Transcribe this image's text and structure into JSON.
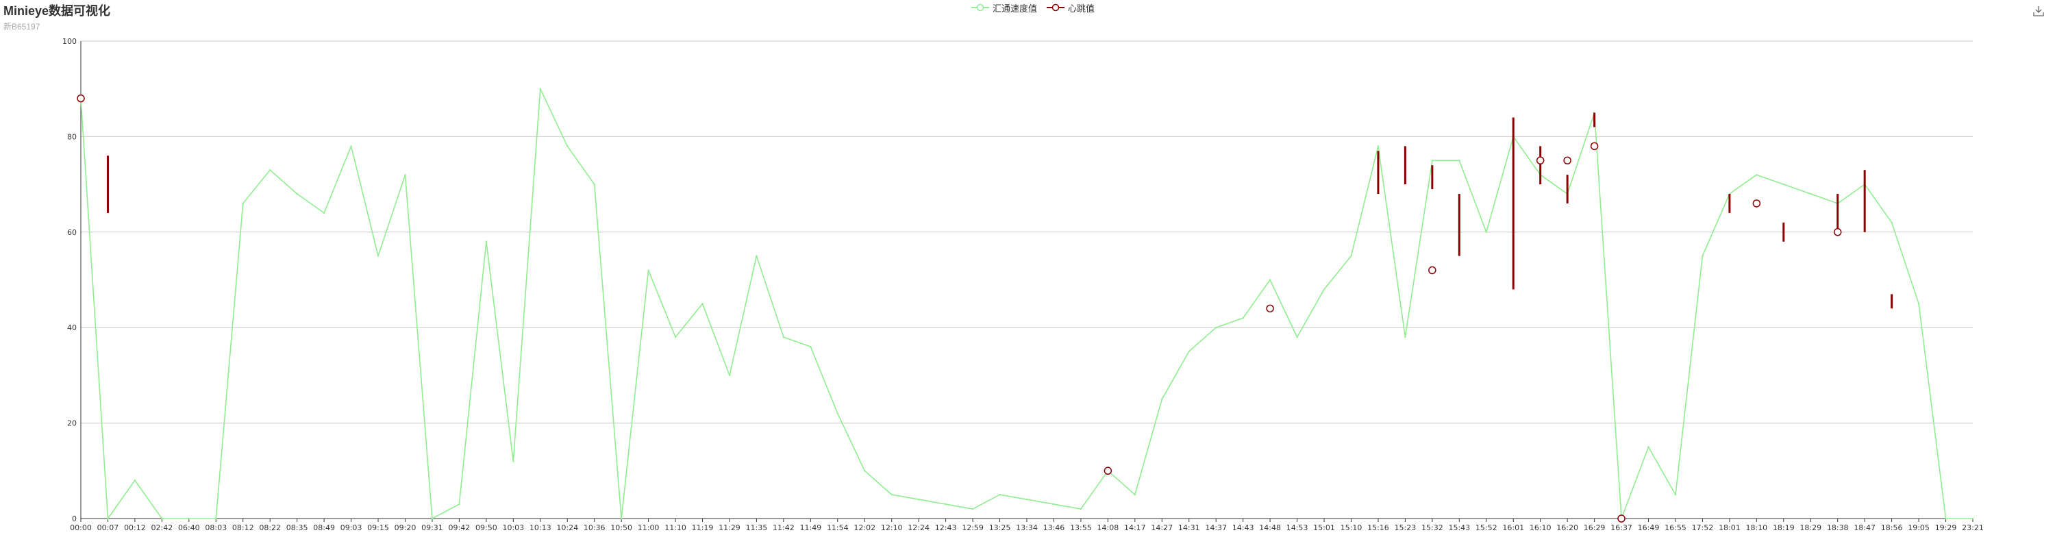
{
  "header": {
    "title": "Minieye数据可视化",
    "subtitle": "新B65197"
  },
  "toolbar": {
    "download_icon": "download-icon"
  },
  "colors": {
    "speed": "#90ee90",
    "heartbeat": "#8b0000",
    "grid": "#cccccc",
    "axis": "#333333"
  },
  "legend": {
    "placement": "top-center"
  },
  "chart_data": {
    "type": "line",
    "title": "Minieye数据可视化",
    "subtitle": "新B65197",
    "xlabel": "",
    "ylabel": "",
    "ylim": [
      0,
      100
    ],
    "yticks": [
      0,
      20,
      40,
      60,
      80,
      100
    ],
    "grid": true,
    "categories": [
      "00:00",
      "00:07",
      "00:12",
      "02:42",
      "06:40",
      "08:03",
      "08:12",
      "08:22",
      "08:35",
      "08:49",
      "09:03",
      "09:15",
      "09:20",
      "09:31",
      "09:42",
      "09:50",
      "10:03",
      "10:13",
      "10:24",
      "10:36",
      "10:50",
      "11:00",
      "11:10",
      "11:19",
      "11:29",
      "11:35",
      "11:42",
      "11:49",
      "11:54",
      "12:02",
      "12:10",
      "12:24",
      "12:43",
      "12:59",
      "13:25",
      "13:34",
      "13:46",
      "13:55",
      "14:08",
      "14:17",
      "14:27",
      "14:31",
      "14:37",
      "14:43",
      "14:48",
      "14:53",
      "15:01",
      "15:10",
      "15:16",
      "15:23",
      "15:32",
      "15:43",
      "15:52",
      "16:01",
      "16:10",
      "16:20",
      "16:29",
      "16:37",
      "16:49",
      "16:55",
      "17:52",
      "18:01",
      "18:10",
      "18:19",
      "18:29",
      "18:38",
      "18:47",
      "18:56",
      "19:05",
      "19:29",
      "23:21"
    ],
    "series": [
      {
        "name": "汇通速度值",
        "type": "line",
        "color": "#90ee90",
        "values": [
          88,
          0,
          8,
          0,
          0,
          0,
          66,
          73,
          68,
          64,
          78,
          55,
          72,
          0,
          3,
          58,
          12,
          90,
          78,
          70,
          0,
          52,
          38,
          45,
          30,
          55,
          38,
          36,
          22,
          10,
          5,
          4,
          3,
          2,
          5,
          4,
          3,
          2,
          10,
          5,
          25,
          35,
          40,
          42,
          50,
          38,
          48,
          55,
          78,
          38,
          75,
          75,
          60,
          80,
          72,
          68,
          85,
          0,
          15,
          5,
          55,
          68,
          72,
          70,
          68,
          66,
          70,
          62,
          45,
          0,
          0
        ]
      },
      {
        "name": "心跳值",
        "type": "scatter",
        "color": "#8b0000",
        "points": [
          {
            "x": "00:00",
            "y": 88
          },
          {
            "x": "14:08",
            "y": 10
          },
          {
            "x": "14:48",
            "y": 44
          },
          {
            "x": "15:32",
            "y": 52
          },
          {
            "x": "16:10",
            "y": 75
          },
          {
            "x": "16:20",
            "y": 75
          },
          {
            "x": "16:29",
            "y": 78
          },
          {
            "x": "16:37",
            "y": 0
          },
          {
            "x": "18:10",
            "y": 66
          },
          {
            "x": "18:38",
            "y": 60
          }
        ],
        "bars": [
          {
            "x": "00:07",
            "low": 64,
            "high": 76
          },
          {
            "x": "15:16",
            "low": 68,
            "high": 77
          },
          {
            "x": "15:23",
            "low": 70,
            "high": 78
          },
          {
            "x": "15:32",
            "low": 69,
            "high": 74
          },
          {
            "x": "15:43",
            "low": 55,
            "high": 68
          },
          {
            "x": "16:01",
            "low": 48,
            "high": 84
          },
          {
            "x": "16:10",
            "low": 70,
            "high": 78
          },
          {
            "x": "16:20",
            "low": 66,
            "high": 72
          },
          {
            "x": "16:29",
            "low": 82,
            "high": 85
          },
          {
            "x": "18:01",
            "low": 64,
            "high": 68
          },
          {
            "x": "18:19",
            "low": 58,
            "high": 62
          },
          {
            "x": "18:38",
            "low": 60,
            "high": 68
          },
          {
            "x": "18:47",
            "low": 60,
            "high": 73
          },
          {
            "x": "18:56",
            "low": 44,
            "high": 47
          }
        ]
      }
    ]
  }
}
